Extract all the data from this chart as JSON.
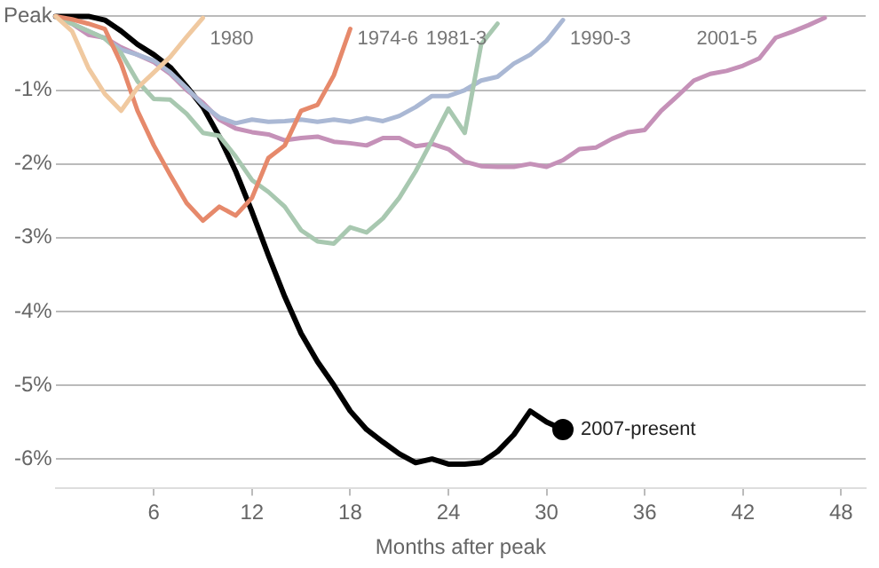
{
  "chart_data": {
    "type": "line",
    "xlabel": "Months after peak",
    "xlim": [
      0,
      49.5
    ],
    "xticks": [
      6,
      12,
      18,
      24,
      30,
      36,
      42,
      48
    ],
    "ylim": [
      -6.4,
      0
    ],
    "yticks": [
      {
        "value": 0,
        "label": "Peak"
      },
      {
        "value": -1,
        "label": "-1%"
      },
      {
        "value": -2,
        "label": "-2%"
      },
      {
        "value": -3,
        "label": "-3%"
      },
      {
        "value": -4,
        "label": "-4%"
      },
      {
        "value": -5,
        "label": "-5%"
      },
      {
        "value": -6,
        "label": "-6%"
      }
    ],
    "grid": "y",
    "legend": false,
    "line_style": "solid",
    "series": [
      {
        "name": "1980",
        "color": "#f0c9a0",
        "x": [
          0,
          1,
          2,
          3,
          4,
          5,
          6,
          7,
          8,
          9
        ],
        "values": [
          0,
          -0.2,
          -0.7,
          -1.05,
          -1.28,
          -0.97,
          -0.76,
          -0.55,
          -0.28,
          -0.02
        ]
      },
      {
        "name": "1974-6",
        "color": "#e6896b",
        "x": [
          0,
          1,
          2,
          3,
          4,
          5,
          6,
          7,
          8,
          9,
          10,
          11,
          12,
          13,
          14,
          15,
          16,
          17,
          18
        ],
        "values": [
          0,
          -0.04,
          -0.1,
          -0.17,
          -0.64,
          -1.28,
          -1.75,
          -2.15,
          -2.53,
          -2.77,
          -2.58,
          -2.7,
          -2.46,
          -1.92,
          -1.75,
          -1.28,
          -1.2,
          -0.8,
          -0.17
        ]
      },
      {
        "name": "1981-3",
        "color": "#a8c8b0",
        "x": [
          0,
          1,
          2,
          3,
          4,
          5,
          6,
          7,
          8,
          9,
          10,
          11,
          12,
          13,
          14,
          15,
          16,
          17,
          18,
          19,
          20,
          21,
          22,
          23,
          24,
          25,
          26,
          27
        ],
        "values": [
          0,
          -0.1,
          -0.2,
          -0.3,
          -0.5,
          -0.88,
          -1.12,
          -1.13,
          -1.32,
          -1.58,
          -1.62,
          -1.9,
          -2.22,
          -2.38,
          -2.58,
          -2.9,
          -3.05,
          -3.08,
          -2.86,
          -2.93,
          -2.74,
          -2.46,
          -2.1,
          -1.68,
          -1.25,
          -1.58,
          -0.38,
          -0.1
        ]
      },
      {
        "name": "1990-3",
        "color": "#aab8d4",
        "x": [
          0,
          1,
          2,
          3,
          4,
          5,
          6,
          7,
          8,
          9,
          10,
          11,
          12,
          13,
          14,
          15,
          16,
          17,
          18,
          19,
          20,
          21,
          22,
          23,
          24,
          25,
          26,
          27,
          28,
          29,
          30,
          31
        ],
        "values": [
          0,
          -0.1,
          -0.2,
          -0.3,
          -0.45,
          -0.52,
          -0.6,
          -0.76,
          -0.97,
          -1.2,
          -1.37,
          -1.45,
          -1.4,
          -1.43,
          -1.42,
          -1.4,
          -1.43,
          -1.4,
          -1.43,
          -1.38,
          -1.42,
          -1.35,
          -1.23,
          -1.08,
          -1.08,
          -1.0,
          -0.87,
          -0.82,
          -0.64,
          -0.52,
          -0.33,
          -0.05
        ]
      },
      {
        "name": "2001-5",
        "color": "#c591b8",
        "x": [
          0,
          1,
          2,
          3,
          4,
          5,
          6,
          7,
          8,
          9,
          10,
          11,
          12,
          13,
          14,
          15,
          16,
          17,
          18,
          19,
          20,
          21,
          22,
          23,
          24,
          25,
          26,
          27,
          28,
          29,
          30,
          31,
          32,
          33,
          34,
          35,
          36,
          37,
          38,
          39,
          40,
          41,
          42,
          43,
          44,
          45,
          46,
          47
        ],
        "values": [
          0,
          -0.1,
          -0.25,
          -0.29,
          -0.42,
          -0.52,
          -0.62,
          -0.78,
          -1.0,
          -1.17,
          -1.4,
          -1.52,
          -1.57,
          -1.6,
          -1.68,
          -1.65,
          -1.63,
          -1.7,
          -1.72,
          -1.75,
          -1.65,
          -1.65,
          -1.76,
          -1.73,
          -1.8,
          -1.97,
          -2.03,
          -2.04,
          -2.04,
          -2.0,
          -2.04,
          -1.95,
          -1.8,
          -1.78,
          -1.66,
          -1.57,
          -1.54,
          -1.28,
          -1.08,
          -0.87,
          -0.78,
          -0.74,
          -0.67,
          -0.57,
          -0.29,
          -0.21,
          -0.12,
          -0.02
        ]
      },
      {
        "name": "2007-present",
        "color": "#000000",
        "x": [
          0,
          1,
          2,
          3,
          4,
          5,
          6,
          7,
          8,
          9,
          10,
          11,
          12,
          13,
          14,
          15,
          16,
          17,
          18,
          19,
          20,
          21,
          22,
          23,
          24,
          25,
          26,
          27,
          28,
          29,
          30,
          31
        ],
        "values": [
          0,
          0,
          0,
          -0.05,
          -0.2,
          -0.38,
          -0.52,
          -0.69,
          -0.95,
          -1.23,
          -1.63,
          -2.1,
          -2.65,
          -3.24,
          -3.8,
          -4.3,
          -4.68,
          -5.0,
          -5.35,
          -5.6,
          -5.77,
          -5.93,
          -6.05,
          -6.0,
          -6.07,
          -6.07,
          -6.05,
          -5.9,
          -5.67,
          -5.35,
          -5.5,
          -5.6
        ]
      }
    ]
  }
}
